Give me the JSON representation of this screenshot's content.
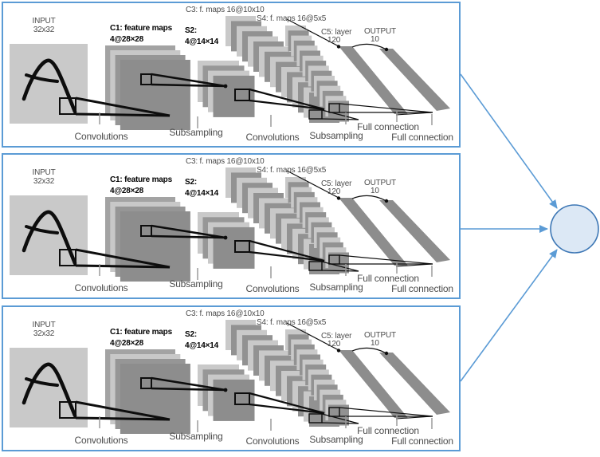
{
  "colors": {
    "frame_blue": "#5b9bd5",
    "arrow_blue": "#5b9bd5",
    "node_fill": "#dce8f5",
    "node_stroke": "#3d77b5"
  },
  "lenet": {
    "input_label": [
      "INPUT",
      "32x32"
    ],
    "c1_label": [
      "C1: feature maps",
      "4@28×28"
    ],
    "s2_label": [
      "S2:",
      "4@14×14"
    ],
    "c3_label": "C3: f. maps 16@10x10",
    "s4_label": "S4: f. maps 16@5x5",
    "c5_label": [
      "C5: layer",
      "120"
    ],
    "output_label": [
      "OUTPUT",
      "10"
    ],
    "steps": [
      "Convolutions",
      "Subsampling",
      "Convolutions",
      "Subsampling",
      "Full connection",
      "Full connection"
    ]
  },
  "replicas": [
    {
      "id": "lenet-replica-1"
    },
    {
      "id": "lenet-replica-2"
    },
    {
      "id": "lenet-replica-3"
    }
  ]
}
